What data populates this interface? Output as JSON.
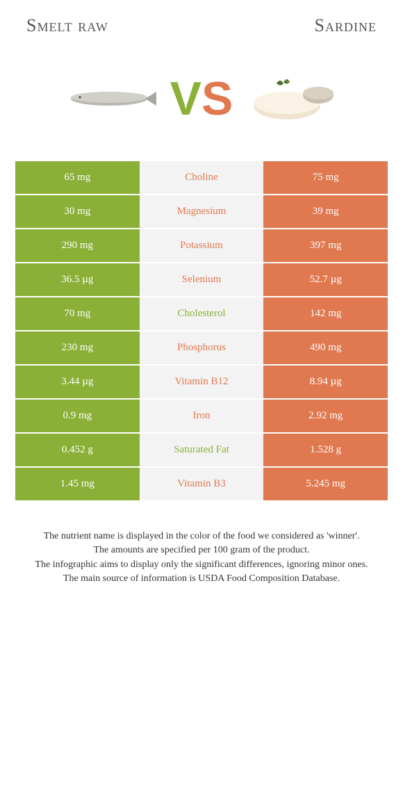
{
  "header": {
    "left_title": "Smelt raw",
    "right_title": "Sardine"
  },
  "vs": {
    "v": "V",
    "s": "S"
  },
  "colors": {
    "left_bg": "#8ab037",
    "right_bg": "#e07850",
    "mid_bg": "#f3f3f3",
    "left_text": "#8ab037",
    "right_text": "#e07850",
    "white": "#ffffff"
  },
  "table": {
    "rows": [
      {
        "left": "65 mg",
        "label": "Choline",
        "right": "75 mg",
        "winner": "right"
      },
      {
        "left": "30 mg",
        "label": "Magnesium",
        "right": "39 mg",
        "winner": "right"
      },
      {
        "left": "290 mg",
        "label": "Potassium",
        "right": "397 mg",
        "winner": "right"
      },
      {
        "left": "36.5 µg",
        "label": "Selenium",
        "right": "52.7 µg",
        "winner": "right"
      },
      {
        "left": "70 mg",
        "label": "Cholesterol",
        "right": "142 mg",
        "winner": "left"
      },
      {
        "left": "230 mg",
        "label": "Phosphorus",
        "right": "490 mg",
        "winner": "right"
      },
      {
        "left": "3.44 µg",
        "label": "Vitamin B12",
        "right": "8.94 µg",
        "winner": "right"
      },
      {
        "left": "0.9 mg",
        "label": "Iron",
        "right": "2.92 mg",
        "winner": "right"
      },
      {
        "left": "0.452 g",
        "label": "Saturated Fat",
        "right": "1.528 g",
        "winner": "left"
      },
      {
        "left": "1.45 mg",
        "label": "Vitamin B3",
        "right": "5.245 mg",
        "winner": "right"
      }
    ]
  },
  "footnotes": {
    "line1": "The nutrient name is displayed in the color of the food we considered as 'winner'.",
    "line2": "The amounts are specified per 100 gram of the product.",
    "line3": "The infographic aims to display only the significant differences, ignoring minor ones.",
    "line4": "The main source of information is USDA Food Composition Database."
  }
}
